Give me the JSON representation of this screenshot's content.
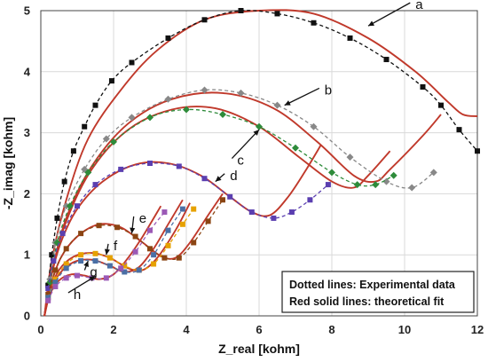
{
  "chart_data": {
    "type": "scatter",
    "xlabel": "Z_real [kohm]",
    "ylabel": "-Z_imag [kohm]",
    "xlim": [
      0,
      12
    ],
    "ylim": [
      0,
      5
    ],
    "x_ticks": [
      0,
      2,
      4,
      6,
      8,
      10,
      12
    ],
    "y_ticks": [
      0,
      1,
      2,
      3,
      4,
      5
    ],
    "legend": [
      "Dotted lines: Experimental data",
      "Red solid lines: theoretical fit"
    ],
    "legend_position": "bottom-right",
    "fit_color": "#c0392b",
    "series": [
      {
        "name": "a",
        "marker": "square",
        "color": "#111111",
        "data": [
          [
            0.2,
            0.5
          ],
          [
            0.3,
            1.0
          ],
          [
            0.45,
            1.6
          ],
          [
            0.65,
            2.2
          ],
          [
            0.9,
            2.7
          ],
          [
            1.2,
            3.1
          ],
          [
            1.5,
            3.45
          ],
          [
            1.95,
            3.85
          ],
          [
            2.5,
            4.15
          ],
          [
            3.5,
            4.55
          ],
          [
            4.5,
            4.85
          ],
          [
            5.5,
            5.0
          ],
          [
            6.5,
            4.95
          ],
          [
            7.5,
            4.8
          ],
          [
            8.5,
            4.55
          ],
          [
            9.5,
            4.2
          ],
          [
            10.5,
            3.75
          ],
          [
            11.0,
            3.45
          ],
          [
            11.5,
            3.05
          ],
          [
            12.0,
            2.7
          ]
        ],
        "fit": [
          [
            0.1,
            0
          ],
          [
            0.3,
            0.9
          ],
          [
            0.7,
            1.9
          ],
          [
            1.3,
            2.9
          ],
          [
            2.2,
            3.7
          ],
          [
            3.2,
            4.35
          ],
          [
            4.5,
            4.85
          ],
          [
            6.0,
            5.0
          ],
          [
            7.5,
            4.95
          ],
          [
            9.0,
            4.55
          ],
          [
            10.3,
            4.0
          ],
          [
            11.2,
            3.5
          ],
          [
            11.6,
            3.3
          ],
          [
            12.0,
            3.27
          ]
        ]
      },
      {
        "name": "b",
        "marker": "diamond",
        "color": "#888888",
        "data": [
          [
            0.25,
            0.6
          ],
          [
            0.4,
            1.2
          ],
          [
            0.7,
            1.8
          ],
          [
            1.2,
            2.4
          ],
          [
            1.8,
            2.9
          ],
          [
            2.5,
            3.25
          ],
          [
            3.5,
            3.55
          ],
          [
            4.5,
            3.7
          ],
          [
            5.5,
            3.65
          ],
          [
            6.5,
            3.45
          ],
          [
            7.5,
            3.1
          ],
          [
            8.5,
            2.6
          ],
          [
            9.5,
            2.2
          ],
          [
            10.2,
            2.1
          ],
          [
            10.8,
            2.35
          ]
        ],
        "fit": [
          [
            0.1,
            0
          ],
          [
            0.3,
            0.7
          ],
          [
            0.7,
            1.6
          ],
          [
            1.4,
            2.45
          ],
          [
            2.4,
            3.15
          ],
          [
            3.6,
            3.55
          ],
          [
            5.0,
            3.65
          ],
          [
            6.4,
            3.4
          ],
          [
            7.6,
            2.85
          ],
          [
            8.6,
            2.3
          ],
          [
            9.2,
            2.2
          ],
          [
            9.6,
            2.4
          ],
          [
            10.5,
            2.95
          ],
          [
            11.0,
            3.3
          ]
        ]
      },
      {
        "name": "c",
        "marker": "diamond",
        "color": "#2e8b3a",
        "data": [
          [
            0.25,
            0.55
          ],
          [
            0.45,
            1.2
          ],
          [
            0.8,
            1.8
          ],
          [
            1.3,
            2.35
          ],
          [
            2.0,
            2.85
          ],
          [
            3.0,
            3.25
          ],
          [
            4.0,
            3.38
          ],
          [
            5.0,
            3.3
          ],
          [
            6.0,
            3.1
          ],
          [
            7.0,
            2.75
          ],
          [
            8.0,
            2.35
          ],
          [
            8.7,
            2.15
          ],
          [
            9.2,
            2.15
          ],
          [
            9.7,
            2.3
          ]
        ],
        "fit": [
          [
            0.1,
            0
          ],
          [
            0.3,
            0.7
          ],
          [
            0.7,
            1.55
          ],
          [
            1.4,
            2.4
          ],
          [
            2.4,
            3.05
          ],
          [
            3.6,
            3.38
          ],
          [
            4.8,
            3.4
          ],
          [
            6.0,
            3.1
          ],
          [
            7.1,
            2.6
          ],
          [
            8.0,
            2.2
          ],
          [
            8.6,
            2.1
          ],
          [
            9.0,
            2.3
          ],
          [
            9.6,
            2.7
          ]
        ]
      },
      {
        "name": "d",
        "marker": "square",
        "color": "#5b3fb0",
        "data": [
          [
            0.2,
            0.45
          ],
          [
            0.35,
            0.9
          ],
          [
            0.6,
            1.35
          ],
          [
            1.0,
            1.8
          ],
          [
            1.5,
            2.15
          ],
          [
            2.2,
            2.4
          ],
          [
            3.0,
            2.5
          ],
          [
            3.8,
            2.45
          ],
          [
            4.5,
            2.25
          ],
          [
            5.2,
            1.95
          ],
          [
            5.8,
            1.7
          ],
          [
            6.4,
            1.6
          ],
          [
            6.9,
            1.7
          ],
          [
            7.4,
            1.9
          ],
          [
            7.9,
            2.15
          ]
        ],
        "fit": [
          [
            0.1,
            0
          ],
          [
            0.25,
            0.55
          ],
          [
            0.55,
            1.2
          ],
          [
            1.0,
            1.75
          ],
          [
            1.7,
            2.2
          ],
          [
            2.6,
            2.48
          ],
          [
            3.5,
            2.5
          ],
          [
            4.4,
            2.3
          ],
          [
            5.2,
            1.95
          ],
          [
            5.8,
            1.7
          ],
          [
            6.3,
            1.65
          ],
          [
            6.8,
            1.95
          ],
          [
            7.3,
            2.4
          ],
          [
            7.7,
            2.8
          ]
        ]
      },
      {
        "name": "e",
        "marker": "square",
        "color": "#8b4513",
        "data": [
          [
            0.2,
            0.35
          ],
          [
            0.4,
            0.75
          ],
          [
            0.7,
            1.1
          ],
          [
            1.1,
            1.35
          ],
          [
            1.6,
            1.48
          ],
          [
            2.1,
            1.45
          ],
          [
            2.6,
            1.3
          ],
          [
            3.0,
            1.1
          ],
          [
            3.4,
            0.95
          ],
          [
            3.8,
            0.95
          ],
          [
            4.2,
            1.2
          ],
          [
            4.6,
            1.55
          ],
          [
            5.0,
            1.9
          ]
        ],
        "fit": [
          [
            0.1,
            0
          ],
          [
            0.25,
            0.45
          ],
          [
            0.55,
            0.95
          ],
          [
            1.0,
            1.3
          ],
          [
            1.6,
            1.5
          ],
          [
            2.2,
            1.45
          ],
          [
            2.8,
            1.2
          ],
          [
            3.3,
            0.98
          ],
          [
            3.7,
            0.95
          ],
          [
            4.1,
            1.2
          ],
          [
            4.6,
            1.65
          ],
          [
            5.0,
            2.0
          ]
        ]
      },
      {
        "name": "f",
        "marker": "square",
        "color": "#e6a100",
        "data": [
          [
            0.2,
            0.3
          ],
          [
            0.4,
            0.6
          ],
          [
            0.7,
            0.85
          ],
          [
            1.1,
            1.0
          ],
          [
            1.5,
            1.02
          ],
          [
            1.9,
            0.95
          ],
          [
            2.3,
            0.82
          ],
          [
            2.7,
            0.75
          ],
          [
            3.1,
            0.85
          ],
          [
            3.5,
            1.15
          ],
          [
            3.9,
            1.5
          ],
          [
            4.2,
            1.75
          ]
        ],
        "fit": [
          [
            0.1,
            0
          ],
          [
            0.25,
            0.4
          ],
          [
            0.5,
            0.75
          ],
          [
            0.9,
            0.97
          ],
          [
            1.4,
            1.03
          ],
          [
            1.9,
            0.95
          ],
          [
            2.4,
            0.78
          ],
          [
            2.8,
            0.75
          ],
          [
            3.2,
            0.95
          ],
          [
            3.7,
            1.4
          ],
          [
            4.1,
            1.85
          ]
        ]
      },
      {
        "name": "g",
        "marker": "square",
        "color": "#4a6fa5",
        "data": [
          [
            0.2,
            0.3
          ],
          [
            0.4,
            0.55
          ],
          [
            0.7,
            0.78
          ],
          [
            1.1,
            0.9
          ],
          [
            1.5,
            0.9
          ],
          [
            1.9,
            0.82
          ],
          [
            2.3,
            0.72
          ],
          [
            2.7,
            0.75
          ],
          [
            3.1,
            1.0
          ],
          [
            3.5,
            1.4
          ],
          [
            3.9,
            1.75
          ]
        ],
        "fit": [
          [
            0.1,
            0
          ],
          [
            0.25,
            0.38
          ],
          [
            0.5,
            0.68
          ],
          [
            0.9,
            0.88
          ],
          [
            1.4,
            0.92
          ],
          [
            1.9,
            0.82
          ],
          [
            2.3,
            0.72
          ],
          [
            2.7,
            0.8
          ],
          [
            3.1,
            1.1
          ],
          [
            3.5,
            1.5
          ],
          [
            3.9,
            1.9
          ]
        ]
      },
      {
        "name": "h",
        "marker": "square",
        "color": "#9b59b6",
        "data": [
          [
            0.2,
            0.25
          ],
          [
            0.4,
            0.48
          ],
          [
            0.7,
            0.62
          ],
          [
            1.0,
            0.66
          ],
          [
            1.4,
            0.62
          ],
          [
            1.8,
            0.62
          ],
          [
            2.2,
            0.78
          ],
          [
            2.6,
            1.05
          ],
          [
            3.0,
            1.4
          ],
          [
            3.4,
            1.7
          ]
        ],
        "fit": [
          [
            0.1,
            0
          ],
          [
            0.25,
            0.35
          ],
          [
            0.5,
            0.58
          ],
          [
            0.85,
            0.68
          ],
          [
            1.2,
            0.66
          ],
          [
            1.6,
            0.6
          ],
          [
            2.0,
            0.68
          ],
          [
            2.4,
            0.95
          ],
          [
            2.8,
            1.3
          ],
          [
            3.3,
            1.8
          ]
        ]
      }
    ],
    "annotations": [
      {
        "text": "a",
        "at": [
          9.0,
          4.75
        ],
        "label": [
          10.3,
          5.1
        ]
      },
      {
        "text": "b",
        "at": [
          6.7,
          3.45
        ],
        "label": [
          7.8,
          3.7
        ]
      },
      {
        "text": "c",
        "at": [
          6.0,
          3.05
        ],
        "label": [
          5.4,
          2.55
        ]
      },
      {
        "text": "d",
        "at": [
          4.8,
          2.2
        ],
        "label": [
          5.2,
          2.3
        ]
      },
      {
        "text": "e",
        "at": [
          2.5,
          1.35
        ],
        "label": [
          2.7,
          1.6
        ]
      },
      {
        "text": "f",
        "at": [
          1.8,
          1.0
        ],
        "label": [
          2.0,
          1.15
        ]
      },
      {
        "text": "g",
        "at": [
          1.3,
          0.9
        ],
        "label": [
          1.35,
          0.72
        ]
      },
      {
        "text": "h",
        "at": [
          1.5,
          0.65
        ],
        "label": [
          0.9,
          0.35
        ]
      }
    ]
  }
}
